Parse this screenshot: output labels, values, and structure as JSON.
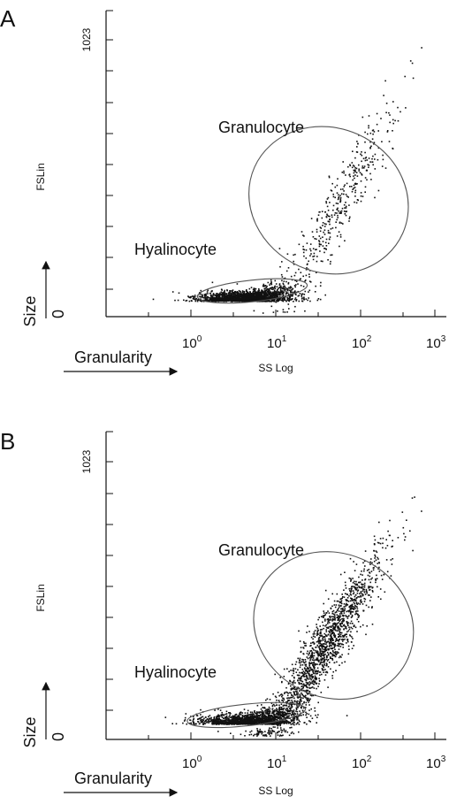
{
  "chart_data": [
    {
      "type": "scatter",
      "panel": "A",
      "x_scale": "log",
      "xlim": [
        0.1,
        1000
      ],
      "ylim": [
        0,
        1023
      ],
      "xlabel": "SS Log",
      "ylabel": "FSLin",
      "y_tick_labels": [
        "0",
        "1023"
      ],
      "x_tick_labels": [
        {
          "base": "10",
          "exp": "0",
          "value": 1
        },
        {
          "base": "10",
          "exp": "1",
          "value": 10
        },
        {
          "base": "10",
          "exp": "2",
          "value": 100
        },
        {
          "base": "10",
          "exp": "3",
          "value": 1000
        }
      ],
      "arrow_labels": {
        "x": "Granularity",
        "y": "Size"
      },
      "annotations": [
        "Granulocyte",
        "Hyalinocyte"
      ],
      "gates": [
        {
          "name": "Granulocyte",
          "center": [
            42,
            430
          ],
          "rx_decades": 0.85,
          "ry": 300,
          "angle_deg": 66
        },
        {
          "name": "Hyalinocyte",
          "center": [
            5.3,
            95
          ],
          "rx_decades": 0.65,
          "ry": 40,
          "angle_deg": 6
        }
      ],
      "populations": [
        {
          "name": "Hyalinocyte",
          "count": 1800,
          "log_center": 0.68,
          "log_sd": 0.28,
          "y_center": 70,
          "y_sd": 28
        },
        {
          "name": "Granulocyte",
          "count": 420,
          "log_center": 1.75,
          "log_sd": 0.35,
          "y_center": 420,
          "y_sd": 200
        }
      ]
    },
    {
      "type": "scatter",
      "panel": "B",
      "x_scale": "log",
      "xlim": [
        0.1,
        1000
      ],
      "ylim": [
        0,
        1023
      ],
      "xlabel": "SS Log",
      "ylabel": "FSLin",
      "y_tick_labels": [
        "0",
        "1023"
      ],
      "x_tick_labels": [
        {
          "base": "10",
          "exp": "0",
          "value": 1
        },
        {
          "base": "10",
          "exp": "1",
          "value": 10
        },
        {
          "base": "10",
          "exp": "2",
          "value": 100
        },
        {
          "base": "10",
          "exp": "3",
          "value": 1000
        }
      ],
      "arrow_labels": {
        "x": "Granularity",
        "y": "Size"
      },
      "annotations": [
        "Granulocyte",
        "Hyalinocyte"
      ],
      "gates": [
        {
          "name": "Granulocyte",
          "center": [
            48,
            420
          ],
          "rx_decades": 0.85,
          "ry": 300,
          "angle_deg": 66
        },
        {
          "name": "Hyalinocyte",
          "center": [
            4.5,
            90
          ],
          "rx_decades": 0.7,
          "ry": 40,
          "angle_deg": 6
        }
      ],
      "populations": [
        {
          "name": "Hyalinocyte",
          "count": 1500,
          "log_center": 0.7,
          "log_sd": 0.3,
          "y_center": 70,
          "y_sd": 30
        },
        {
          "name": "Granulocyte",
          "count": 1600,
          "log_center": 1.55,
          "log_sd": 0.35,
          "y_center": 330,
          "y_sd": 180
        }
      ]
    }
  ]
}
